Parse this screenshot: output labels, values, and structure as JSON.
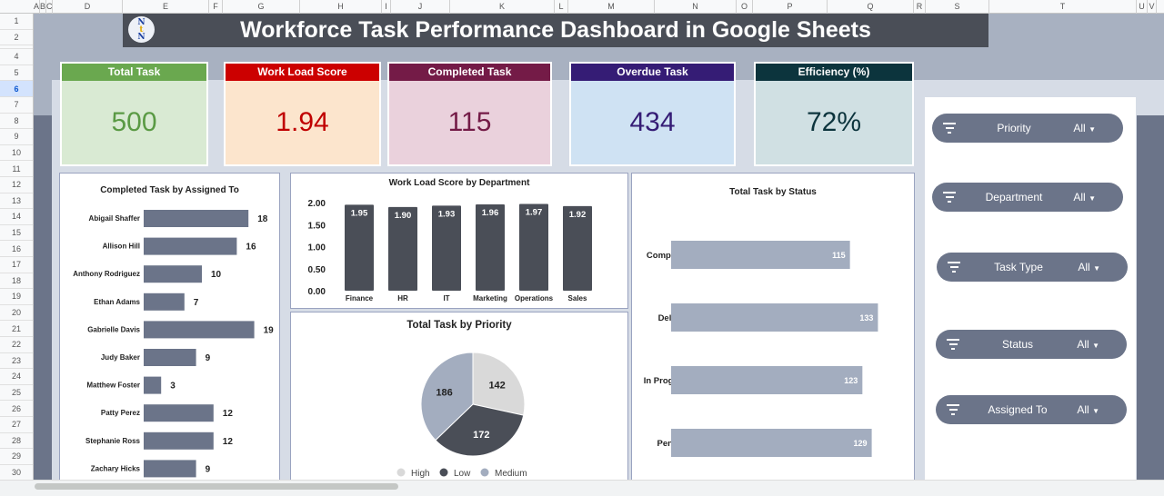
{
  "sheet": {
    "columns": [
      "A",
      "B",
      "C",
      "D",
      "E",
      "F",
      "G",
      "H",
      "I",
      "J",
      "K",
      "L",
      "M",
      "N",
      "O",
      "P",
      "Q",
      "R",
      "S",
      "T",
      "U",
      "V"
    ],
    "rows": [
      "1",
      "2",
      "3",
      "4",
      "5",
      "6",
      "7",
      "8",
      "9",
      "10",
      "11",
      "12",
      "13",
      "14",
      "15",
      "16",
      "17",
      "18",
      "19",
      "20",
      "21",
      "22",
      "23",
      "24",
      "25",
      "26",
      "27",
      "28",
      "29",
      "30"
    ],
    "selected_row": "6"
  },
  "header": {
    "title": "Workforce Task Performance Dashboard in Google Sheets",
    "logo_text": "NtN"
  },
  "kpis": [
    {
      "label": "Total Task",
      "value": "500",
      "head_color": "#6aa84f",
      "bg_color": "#d9ead3",
      "value_color": "#5a9a44"
    },
    {
      "label": "Work Load Score",
      "value": "1.94",
      "head_color": "#cc0000",
      "bg_color": "#fce5cd",
      "value_color": "#c00000"
    },
    {
      "label": "Completed Task",
      "value": "115",
      "head_color": "#741b47",
      "bg_color": "#ead1dc",
      "value_color": "#741b47"
    },
    {
      "label": "Overdue Task",
      "value": "434",
      "head_color": "#351c75",
      "bg_color": "#cfe2f3",
      "value_color": "#351c75"
    },
    {
      "label": "Efficiency (%)",
      "value": "72%",
      "head_color": "#0c343d",
      "bg_color": "#d0e0e3",
      "value_color": "#0c343d"
    }
  ],
  "filters": [
    {
      "label": "Priority",
      "value": "All"
    },
    {
      "label": "Department",
      "value": "All"
    },
    {
      "label": "Task Type",
      "value": "All"
    },
    {
      "label": "Status",
      "value": "All"
    },
    {
      "label": "Assigned To",
      "value": "All"
    }
  ],
  "chart_data": [
    {
      "type": "bar",
      "orientation": "horizontal",
      "title": "Completed Task by Assigned To",
      "categories": [
        "Abigail Shaffer",
        "Allison Hill",
        "Anthony Rodriguez",
        "Ethan Adams",
        "Gabrielle Davis",
        "Judy Baker",
        "Matthew Foster",
        "Patty Perez",
        "Stephanie Ross",
        "Zachary Hicks"
      ],
      "values": [
        18,
        16,
        10,
        7,
        19,
        9,
        3,
        12,
        12,
        9
      ],
      "color": "#6b7489",
      "data_labels": true
    },
    {
      "type": "bar",
      "title": "Work Load Score by Department",
      "categories": [
        "Finance",
        "HR",
        "IT",
        "Marketing",
        "Operations",
        "Sales"
      ],
      "values": [
        1.95,
        1.9,
        1.93,
        1.96,
        1.97,
        1.92
      ],
      "value_labels": [
        "1.95",
        "1.90",
        "1.93",
        "1.96",
        "1.97",
        "1.92"
      ],
      "ylim": [
        0,
        2
      ],
      "yticks": [
        "0.00",
        "0.50",
        "1.00",
        "1.50",
        "2.00"
      ],
      "color": "#4a4e57",
      "data_labels": true
    },
    {
      "type": "pie",
      "title": "Total Task by Priority",
      "categories": [
        "High",
        "Low",
        "Medium"
      ],
      "values": [
        142,
        172,
        186
      ],
      "colors": [
        "#d9d9d9",
        "#4a4e57",
        "#a3adbf"
      ],
      "legend": "bottom"
    },
    {
      "type": "bar",
      "orientation": "horizontal",
      "title": "Total Task by Status",
      "categories": [
        "Completed",
        "Delayed",
        "In Progress",
        "Pending"
      ],
      "values": [
        115,
        133,
        123,
        129
      ],
      "color": "#a3adbf",
      "data_labels": true
    }
  ]
}
